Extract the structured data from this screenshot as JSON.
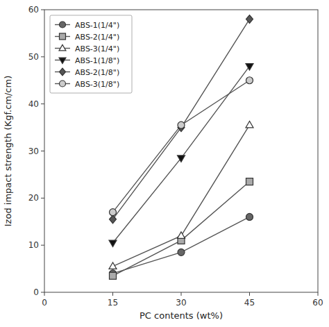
{
  "chart_data": {
    "type": "line",
    "x": [
      15,
      30,
      45
    ],
    "series": [
      {
        "name": "ABS-1(1/4\")",
        "values": [
          4.0,
          8.5,
          16.0
        ],
        "marker": "circle",
        "color": "#666666"
      },
      {
        "name": "ABS-2(1/4\")",
        "values": [
          3.5,
          11.0,
          23.5
        ],
        "marker": "square",
        "color": "#aaaaaa"
      },
      {
        "name": "ABS-3(1/4\")",
        "values": [
          5.5,
          12.0,
          35.5
        ],
        "marker": "triangle-up",
        "color": "white"
      },
      {
        "name": "ABS-1(1/8\")",
        "values": [
          10.5,
          28.5,
          48.0
        ],
        "marker": "triangle-down",
        "color": "#111111"
      },
      {
        "name": "ABS-2(1/8\")",
        "values": [
          15.5,
          35.0,
          58.0
        ],
        "marker": "diamond",
        "color": "#555555"
      },
      {
        "name": "ABS-3(1/8\")",
        "values": [
          17.0,
          35.5,
          45.0
        ],
        "marker": "circle",
        "color": "#cccccc"
      }
    ],
    "color": "#555555",
    "xlabel": "PC contents (wt%)",
    "ylabel": "Izod impact strength (Kgf.cm/cm)",
    "xlim": [
      0,
      60
    ],
    "ylim": [
      0,
      60
    ],
    "xticks": [
      0,
      15,
      30,
      45,
      60
    ],
    "yticks": [
      0,
      10,
      20,
      30,
      40,
      50,
      60
    ],
    "legend": "upper left",
    "grid": false
  }
}
